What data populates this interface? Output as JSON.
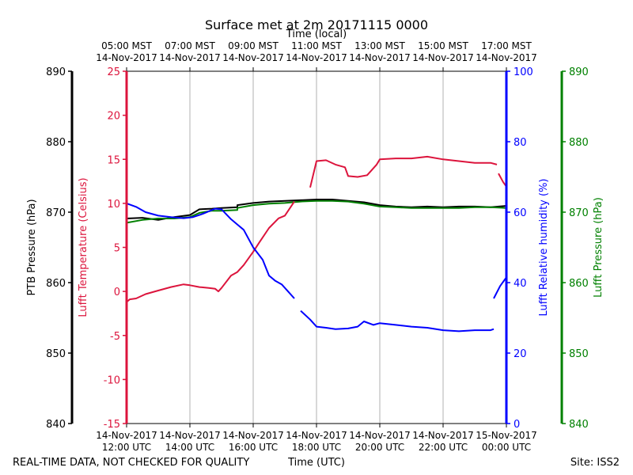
{
  "chart_data": {
    "type": "line",
    "title": "Surface met at 2m 20171115 0000",
    "top_axis_label": "Time (local)",
    "top_ticks": [
      {
        "t": 12,
        "line1": "05:00 MST",
        "line2": "14-Nov-2017"
      },
      {
        "t": 14,
        "line1": "07:00 MST",
        "line2": "14-Nov-2017"
      },
      {
        "t": 16,
        "line1": "09:00 MST",
        "line2": "14-Nov-2017"
      },
      {
        "t": 18,
        "line1": "11:00 MST",
        "line2": "14-Nov-2017"
      },
      {
        "t": 20,
        "line1": "13:00 MST",
        "line2": "14-Nov-2017"
      },
      {
        "t": 22,
        "line1": "15:00 MST",
        "line2": "14-Nov-2017"
      },
      {
        "t": 24,
        "line1": "17:00 MST",
        "line2": "14-Nov-2017"
      }
    ],
    "bottom_ticks": [
      {
        "t": 12,
        "line1": "14-Nov-2017",
        "line2": "12:00 UTC"
      },
      {
        "t": 14,
        "line1": "14-Nov-2017",
        "line2": "14:00 UTC"
      },
      {
        "t": 16,
        "line1": "14-Nov-2017",
        "line2": "16:00 UTC"
      },
      {
        "t": 18,
        "line1": "14-Nov-2017",
        "line2": "18:00 UTC"
      },
      {
        "t": 20,
        "line1": "14-Nov-2017",
        "line2": "20:00 UTC"
      },
      {
        "t": 22,
        "line1": "14-Nov-2017",
        "line2": "22:00 UTC"
      },
      {
        "t": 24,
        "line1": "15-Nov-2017",
        "line2": "00:00 UTC"
      }
    ],
    "xlabel": "Time (UTC)",
    "xlim": [
      12,
      24
    ],
    "footer_left": "REAL-TIME DATA, NOT CHECKED FOR QUALITY",
    "footer_right": "Site: ISS2",
    "axes": [
      {
        "id": "ptb",
        "label": "PTB Pressure (hPa)",
        "color": "#000000",
        "range": [
          840,
          890
        ],
        "ticks": [
          840,
          850,
          860,
          870,
          880,
          890
        ]
      },
      {
        "id": "temp",
        "label": "Lufft Temperature (Celsius)",
        "color": "#dc143c",
        "range": [
          -15,
          25
        ],
        "ticks": [
          -15,
          -10,
          -5,
          0,
          5,
          10,
          15,
          20,
          25
        ]
      },
      {
        "id": "rh",
        "label": "Lufft Relative humidity (%)",
        "color": "#0000ff",
        "range": [
          0,
          100
        ],
        "ticks": [
          0,
          20,
          40,
          60,
          80,
          100
        ]
      },
      {
        "id": "lp",
        "label": "Lufft Pressure (hPa)",
        "color": "#008000",
        "range": [
          840,
          890
        ],
        "ticks": [
          840,
          850,
          860,
          870,
          880,
          890
        ]
      }
    ],
    "series": [
      {
        "name": "PTB Pressure",
        "axis": "ptb",
        "color": "#000000",
        "points": [
          [
            12,
            869.1
          ],
          [
            12.5,
            869.2
          ],
          [
            13,
            868.9
          ],
          [
            13.5,
            869.3
          ],
          [
            14,
            869.6
          ],
          [
            14.3,
            870.4
          ],
          [
            14.7,
            870.5
          ],
          [
            15,
            870.6
          ],
          [
            15.5,
            870.7
          ],
          [
            15.5,
            871.0
          ],
          [
            16,
            871.3
          ],
          [
            16.5,
            871.5
          ],
          [
            17,
            871.6
          ],
          [
            17.5,
            871.7
          ],
          [
            18,
            871.8
          ],
          [
            18.5,
            871.8
          ],
          [
            19,
            871.6
          ],
          [
            19.5,
            871.4
          ],
          [
            20,
            871.0
          ],
          [
            20.5,
            870.8
          ],
          [
            21,
            870.7
          ],
          [
            21.5,
            870.8
          ],
          [
            22,
            870.7
          ],
          [
            22.5,
            870.8
          ],
          [
            23,
            870.8
          ],
          [
            23.5,
            870.7
          ],
          [
            24,
            870.9
          ]
        ]
      },
      {
        "name": "Lufft Pressure",
        "axis": "lp",
        "color": "#008000",
        "points": [
          [
            12,
            868.5
          ],
          [
            12.5,
            868.9
          ],
          [
            13,
            869.1
          ],
          [
            13.5,
            869.1
          ],
          [
            14,
            869.3
          ],
          [
            14.3,
            869.9
          ],
          [
            14.7,
            870.2
          ],
          [
            15,
            870.2
          ],
          [
            15.5,
            870.3
          ],
          [
            15.5,
            870.6
          ],
          [
            16,
            871.0
          ],
          [
            16.5,
            871.2
          ],
          [
            17,
            871.3
          ],
          [
            17.5,
            871.5
          ],
          [
            18,
            871.6
          ],
          [
            18.5,
            871.6
          ],
          [
            19,
            871.5
          ],
          [
            19.5,
            871.2
          ],
          [
            20,
            870.8
          ],
          [
            20.5,
            870.7
          ],
          [
            21,
            870.6
          ],
          [
            21.5,
            870.6
          ],
          [
            22,
            870.6
          ],
          [
            22.5,
            870.6
          ],
          [
            23,
            870.7
          ],
          [
            23.5,
            870.7
          ],
          [
            24,
            870.6
          ]
        ]
      },
      {
        "name": "Lufft Temperature",
        "axis": "temp",
        "color": "#dc143c",
        "segments": [
          [
            [
              12,
              -1.2
            ],
            [
              12.1,
              -0.9
            ],
            [
              12.3,
              -0.8
            ],
            [
              12.6,
              -0.3
            ],
            [
              13,
              0.1
            ],
            [
              13.4,
              0.5
            ],
            [
              13.8,
              0.8
            ],
            [
              14.0,
              0.7
            ],
            [
              14.3,
              0.5
            ],
            [
              14.6,
              0.4
            ],
            [
              14.8,
              0.3
            ],
            [
              14.9,
              0.0
            ],
            [
              15.0,
              0.4
            ],
            [
              15.3,
              1.8
            ],
            [
              15.5,
              2.2
            ],
            [
              15.7,
              3.0
            ],
            [
              16.0,
              4.5
            ],
            [
              16.2,
              5.6
            ],
            [
              16.5,
              7.2
            ],
            [
              16.8,
              8.3
            ],
            [
              17.0,
              8.6
            ],
            [
              17.3,
              10.2
            ]
          ],
          [
            [
              17.8,
              11.8
            ],
            [
              18.0,
              14.8
            ],
            [
              18.3,
              14.9
            ],
            [
              18.6,
              14.4
            ],
            [
              18.9,
              14.1
            ],
            [
              19.0,
              13.1
            ],
            [
              19.3,
              13.0
            ],
            [
              19.6,
              13.2
            ],
            [
              19.9,
              14.4
            ],
            [
              20.0,
              15.0
            ],
            [
              20.5,
              15.1
            ],
            [
              21.0,
              15.1
            ],
            [
              21.5,
              15.3
            ],
            [
              22.0,
              15.0
            ],
            [
              22.5,
              14.8
            ],
            [
              23.0,
              14.6
            ],
            [
              23.5,
              14.6
            ],
            [
              23.7,
              14.4
            ]
          ],
          [
            [
              23.75,
              13.4
            ],
            [
              23.9,
              12.4
            ],
            [
              24,
              11.9
            ]
          ]
        ]
      },
      {
        "name": "Lufft Relative humidity",
        "axis": "rh",
        "color": "#0000ff",
        "segments": [
          [
            [
              12,
              62.5
            ],
            [
              12.3,
              61.5
            ],
            [
              12.6,
              60.0
            ],
            [
              13.0,
              59.0
            ],
            [
              13.4,
              58.6
            ],
            [
              13.8,
              58.3
            ],
            [
              14.1,
              58.6
            ],
            [
              14.4,
              59.5
            ],
            [
              14.8,
              61.0
            ],
            [
              15.0,
              60.8
            ],
            [
              15.3,
              58.0
            ],
            [
              15.5,
              56.5
            ],
            [
              15.7,
              55.0
            ],
            [
              16.0,
              50.0
            ],
            [
              16.3,
              46.5
            ],
            [
              16.5,
              42.0
            ],
            [
              16.7,
              40.5
            ],
            [
              16.9,
              39.5
            ],
            [
              17.1,
              37.5
            ],
            [
              17.3,
              35.5
            ]
          ],
          [
            [
              17.5,
              32.0
            ],
            [
              17.8,
              29.5
            ],
            [
              18.0,
              27.5
            ],
            [
              18.3,
              27.2
            ],
            [
              18.6,
              26.8
            ],
            [
              19.0,
              27.0
            ],
            [
              19.3,
              27.5
            ],
            [
              19.5,
              29.0
            ],
            [
              19.8,
              28.0
            ],
            [
              20.0,
              28.5
            ],
            [
              20.5,
              28.0
            ],
            [
              21.0,
              27.5
            ],
            [
              21.5,
              27.2
            ],
            [
              22.0,
              26.5
            ],
            [
              22.5,
              26.2
            ],
            [
              23.0,
              26.5
            ],
            [
              23.5,
              26.5
            ],
            [
              23.6,
              26.8
            ]
          ],
          [
            [
              23.6,
              35.5
            ],
            [
              23.8,
              39.0
            ],
            [
              24,
              41.5
            ]
          ]
        ]
      }
    ]
  }
}
